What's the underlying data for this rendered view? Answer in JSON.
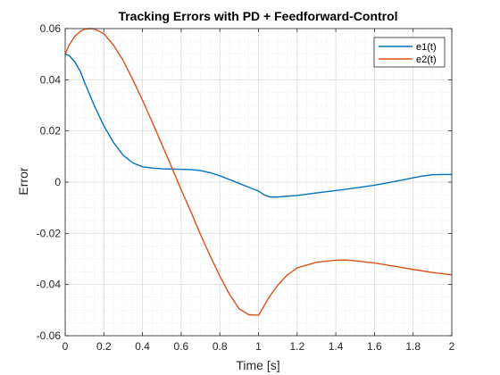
{
  "chart_data": {
    "type": "line",
    "title": "Tracking Errors with PD + Feedforward-Control",
    "xlabel": "Time [s]",
    "ylabel": "Error",
    "xlim": [
      0,
      2
    ],
    "ylim": [
      -0.06,
      0.06
    ],
    "xticks": [
      0,
      0.2,
      0.4,
      0.6,
      0.8,
      1,
      1.2,
      1.4,
      1.6,
      1.8,
      2
    ],
    "xtick_labels": [
      "0",
      "0.2",
      "0.4",
      "0.6",
      "0.8",
      "1",
      "1.2",
      "1.4",
      "1.6",
      "1.8",
      "2"
    ],
    "yticks": [
      -0.06,
      -0.04,
      -0.02,
      0,
      0.02,
      0.04,
      0.06
    ],
    "ytick_labels": [
      "-0.06",
      "-0.04",
      "-0.02",
      "0",
      "0.02",
      "0.04",
      "0.06"
    ],
    "grid": true,
    "minor_grid": true,
    "legend_position": "top-right",
    "series": [
      {
        "name": "e1(t)",
        "color": "#0072BD",
        "x": [
          0,
          0.02,
          0.05,
          0.08,
          0.1,
          0.15,
          0.2,
          0.25,
          0.3,
          0.35,
          0.4,
          0.45,
          0.5,
          0.55,
          0.6,
          0.65,
          0.7,
          0.75,
          0.8,
          0.85,
          0.9,
          0.95,
          1.0,
          1.03,
          1.06,
          1.1,
          1.2,
          1.3,
          1.4,
          1.5,
          1.6,
          1.7,
          1.8,
          1.85,
          1.9,
          1.95,
          2.0
        ],
        "y": [
          0.05,
          0.0495,
          0.047,
          0.043,
          0.039,
          0.03,
          0.022,
          0.0155,
          0.0105,
          0.0075,
          0.006,
          0.0055,
          0.0052,
          0.0051,
          0.005,
          0.0049,
          0.0045,
          0.0037,
          0.0025,
          0.001,
          -0.0005,
          -0.002,
          -0.0035,
          -0.005,
          -0.0058,
          -0.0058,
          -0.0052,
          -0.0042,
          -0.0033,
          -0.0023,
          -0.0012,
          0.0002,
          0.0017,
          0.0024,
          0.0029,
          0.003,
          0.003
        ]
      },
      {
        "name": "e2(t)",
        "color": "#D95319",
        "x": [
          0,
          0.02,
          0.05,
          0.08,
          0.1,
          0.13,
          0.15,
          0.2,
          0.25,
          0.3,
          0.35,
          0.4,
          0.45,
          0.5,
          0.55,
          0.6,
          0.65,
          0.7,
          0.75,
          0.8,
          0.85,
          0.9,
          0.95,
          1.0,
          1.02,
          1.05,
          1.1,
          1.15,
          1.2,
          1.3,
          1.4,
          1.45,
          1.5,
          1.6,
          1.7,
          1.8,
          1.9,
          2.0
        ],
        "y": [
          0.05,
          0.0535,
          0.057,
          0.059,
          0.0597,
          0.06,
          0.0599,
          0.058,
          0.0535,
          0.0475,
          0.04,
          0.032,
          0.0235,
          0.0148,
          0.006,
          -0.003,
          -0.0115,
          -0.0205,
          -0.0288,
          -0.0367,
          -0.0438,
          -0.0495,
          -0.0518,
          -0.052,
          -0.0495,
          -0.0455,
          -0.0402,
          -0.0362,
          -0.0335,
          -0.0313,
          -0.0305,
          -0.0304,
          -0.0307,
          -0.0316,
          -0.0328,
          -0.0341,
          -0.0353,
          -0.0362
        ]
      }
    ]
  }
}
